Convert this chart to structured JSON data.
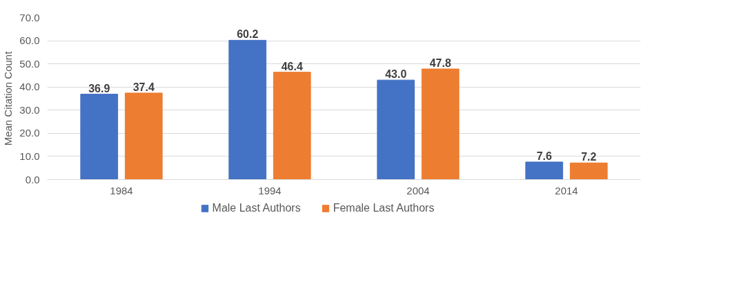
{
  "chart_data": {
    "type": "bar",
    "ylabel": "Mean Citation Count",
    "categories": [
      "1984",
      "1994",
      "2004",
      "2014"
    ],
    "series": [
      {
        "name": "Male Last Authors",
        "color": "#4472c4",
        "values": [
          36.9,
          60.2,
          43.0,
          7.6
        ],
        "value_labels": [
          "36.9",
          "60.2",
          "43.0",
          "7.6"
        ]
      },
      {
        "name": "Female Last Authors",
        "color": "#ed7d31",
        "values": [
          37.4,
          46.4,
          47.8,
          7.2
        ],
        "value_labels": [
          "37.4",
          "46.4",
          "47.8",
          "7.2"
        ]
      }
    ],
    "ylim": [
      0,
      70
    ],
    "yticks": [
      {
        "value": 0,
        "label": "0.0"
      },
      {
        "value": 10,
        "label": "10.0"
      },
      {
        "value": 20,
        "label": "20.0"
      },
      {
        "value": 30,
        "label": "30.0"
      },
      {
        "value": 40,
        "label": "40.0"
      },
      {
        "value": 50,
        "label": "50.0"
      },
      {
        "value": 60,
        "label": "60.0"
      },
      {
        "value": 70,
        "label": "70.0"
      }
    ],
    "grid": "y",
    "legend": "bottom"
  }
}
